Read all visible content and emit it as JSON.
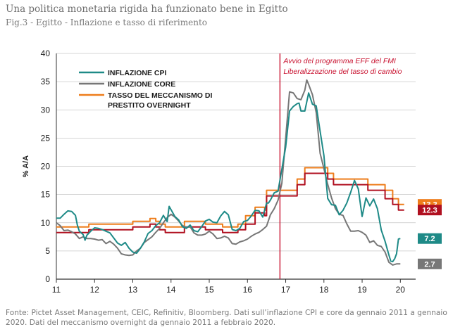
{
  "header": {
    "title": "Una politica monetaria rigida ha funzionato bene in Egitto",
    "subtitle": "Fig.3 - Egitto - Inflazione e tasso di riferimento"
  },
  "footer": {
    "source": "Fonte: Pictet Asset Management, CEIC, Refinitiv, Bloomberg. Dati sull’inflazione CPI e core da gennaio 2011 a gennaio 2020. Dati del meccanismo overnight da gennaio 2011 a febbraio 2020."
  },
  "chart_data": {
    "type": "line",
    "ylabel": "% A/A",
    "xlim": [
      11,
      20.4
    ],
    "ylim": [
      0,
      40
    ],
    "x_ticks": [
      "11",
      "12",
      "13",
      "14",
      "15",
      "16",
      "17",
      "18",
      "19",
      "20"
    ],
    "y_ticks": [
      "0",
      "5",
      "10",
      "15",
      "20",
      "25",
      "30",
      "35",
      "40"
    ],
    "grid": "horizontal",
    "legend_position": "top-left",
    "annotation": {
      "x": 16.85,
      "lines": [
        "Avvio del programma EFF del FMI",
        "Liberalizzazione del tasso di cambio"
      ],
      "color": "#c8102e"
    },
    "series": [
      {
        "name": "INFLAZIONE CPI",
        "color": "#1e8a87",
        "end_label": "7.2",
        "points": [
          [
            11.0,
            10.8
          ],
          [
            11.1,
            10.8
          ],
          [
            11.2,
            11.5
          ],
          [
            11.3,
            12.1
          ],
          [
            11.4,
            12.0
          ],
          [
            11.5,
            11.3
          ],
          [
            11.55,
            9.6
          ],
          [
            11.6,
            8.5
          ],
          [
            11.7,
            7.9
          ],
          [
            11.75,
            6.9
          ],
          [
            11.8,
            7.8
          ],
          [
            11.9,
            8.5
          ],
          [
            12.0,
            9.1
          ],
          [
            12.1,
            9.0
          ],
          [
            12.2,
            8.8
          ],
          [
            12.3,
            8.5
          ],
          [
            12.4,
            8.2
          ],
          [
            12.5,
            7.3
          ],
          [
            12.6,
            6.4
          ],
          [
            12.7,
            6.0
          ],
          [
            12.8,
            6.5
          ],
          [
            12.9,
            5.5
          ],
          [
            13.0,
            4.8
          ],
          [
            13.1,
            4.6
          ],
          [
            13.2,
            5.5
          ],
          [
            13.3,
            6.6
          ],
          [
            13.4,
            8.1
          ],
          [
            13.5,
            8.6
          ],
          [
            13.6,
            9.5
          ],
          [
            13.7,
            10.0
          ],
          [
            13.8,
            11.3
          ],
          [
            13.9,
            10.2
          ],
          [
            13.95,
            12.9
          ],
          [
            14.0,
            12.3
          ],
          [
            14.1,
            11.1
          ],
          [
            14.2,
            10.5
          ],
          [
            14.3,
            9.3
          ],
          [
            14.4,
            9.0
          ],
          [
            14.5,
            9.6
          ],
          [
            14.6,
            8.6
          ],
          [
            14.7,
            8.4
          ],
          [
            14.8,
            9.3
          ],
          [
            14.9,
            10.3
          ],
          [
            15.0,
            10.6
          ],
          [
            15.1,
            10.1
          ],
          [
            15.2,
            10.0
          ],
          [
            15.3,
            11.2
          ],
          [
            15.4,
            12.0
          ],
          [
            15.5,
            11.4
          ],
          [
            15.6,
            8.8
          ],
          [
            15.7,
            8.6
          ],
          [
            15.8,
            9.0
          ],
          [
            15.9,
            10.2
          ],
          [
            16.0,
            10.4
          ],
          [
            16.1,
            11.2
          ],
          [
            16.2,
            12.2
          ],
          [
            16.3,
            12.1
          ],
          [
            16.4,
            11.0
          ],
          [
            16.5,
            13.5
          ],
          [
            16.55,
            13.5
          ],
          [
            16.6,
            14.0
          ],
          [
            16.7,
            15.3
          ],
          [
            16.8,
            15.6
          ],
          [
            16.9,
            19.5
          ],
          [
            17.0,
            23.4
          ],
          [
            17.1,
            29.8
          ],
          [
            17.2,
            30.6
          ],
          [
            17.3,
            31.1
          ],
          [
            17.35,
            31.2
          ],
          [
            17.4,
            29.8
          ],
          [
            17.5,
            29.8
          ],
          [
            17.6,
            33.0
          ],
          [
            17.7,
            31.0
          ],
          [
            17.8,
            30.7
          ],
          [
            17.9,
            26.2
          ],
          [
            18.0,
            21.9
          ],
          [
            18.1,
            14.3
          ],
          [
            18.2,
            13.2
          ],
          [
            18.3,
            13.1
          ],
          [
            18.4,
            11.4
          ],
          [
            18.5,
            12.2
          ],
          [
            18.6,
            13.5
          ],
          [
            18.7,
            15.4
          ],
          [
            18.8,
            17.5
          ],
          [
            18.9,
            16.0
          ],
          [
            19.0,
            11.1
          ],
          [
            19.1,
            14.4
          ],
          [
            19.2,
            13.0
          ],
          [
            19.3,
            14.2
          ],
          [
            19.4,
            12.5
          ],
          [
            19.5,
            8.7
          ],
          [
            19.6,
            6.7
          ],
          [
            19.7,
            4.3
          ],
          [
            19.75,
            3.2
          ],
          [
            19.8,
            3.1
          ],
          [
            19.85,
            3.6
          ],
          [
            19.9,
            4.5
          ],
          [
            19.95,
            7.1
          ],
          [
            20.0,
            7.2
          ]
        ]
      },
      {
        "name": "INFLAZIONE CORE",
        "color": "#777777",
        "end_label": "2.7",
        "points": [
          [
            11.0,
            10.0
          ],
          [
            11.1,
            9.5
          ],
          [
            11.2,
            8.6
          ],
          [
            11.3,
            8.7
          ],
          [
            11.4,
            8.4
          ],
          [
            11.5,
            8.0
          ],
          [
            11.6,
            7.2
          ],
          [
            11.7,
            7.5
          ],
          [
            11.8,
            7.2
          ],
          [
            11.9,
            7.2
          ],
          [
            12.0,
            7.1
          ],
          [
            12.1,
            6.9
          ],
          [
            12.2,
            7.0
          ],
          [
            12.3,
            6.3
          ],
          [
            12.4,
            6.7
          ],
          [
            12.5,
            6.2
          ],
          [
            12.6,
            5.5
          ],
          [
            12.7,
            4.5
          ],
          [
            12.8,
            4.3
          ],
          [
            12.9,
            4.2
          ],
          [
            13.0,
            4.3
          ],
          [
            13.1,
            5.0
          ],
          [
            13.2,
            5.5
          ],
          [
            13.3,
            6.5
          ],
          [
            13.4,
            7.0
          ],
          [
            13.5,
            7.5
          ],
          [
            13.6,
            8.3
          ],
          [
            13.7,
            9.0
          ],
          [
            13.8,
            10.0
          ],
          [
            13.9,
            10.9
          ],
          [
            14.0,
            11.5
          ],
          [
            14.1,
            11.0
          ],
          [
            14.2,
            10.3
          ],
          [
            14.3,
            9.5
          ],
          [
            14.4,
            9.2
          ],
          [
            14.5,
            9.3
          ],
          [
            14.6,
            8.2
          ],
          [
            14.7,
            7.8
          ],
          [
            14.8,
            7.8
          ],
          [
            14.9,
            8.0
          ],
          [
            15.0,
            8.5
          ],
          [
            15.1,
            8.0
          ],
          [
            15.2,
            7.2
          ],
          [
            15.3,
            7.3
          ],
          [
            15.4,
            7.6
          ],
          [
            15.5,
            7.3
          ],
          [
            15.6,
            6.3
          ],
          [
            15.7,
            6.2
          ],
          [
            15.8,
            6.6
          ],
          [
            15.9,
            6.8
          ],
          [
            16.0,
            7.1
          ],
          [
            16.1,
            7.6
          ],
          [
            16.2,
            8.0
          ],
          [
            16.3,
            8.3
          ],
          [
            16.4,
            8.8
          ],
          [
            16.5,
            9.4
          ],
          [
            16.6,
            11.4
          ],
          [
            16.7,
            12.5
          ],
          [
            16.8,
            14.0
          ],
          [
            16.9,
            17.0
          ],
          [
            17.0,
            25.0
          ],
          [
            17.1,
            33.2
          ],
          [
            17.2,
            33.0
          ],
          [
            17.3,
            32.0
          ],
          [
            17.4,
            31.8
          ],
          [
            17.5,
            33.5
          ],
          [
            17.55,
            35.3
          ],
          [
            17.6,
            34.5
          ],
          [
            17.7,
            32.7
          ],
          [
            17.8,
            29.5
          ],
          [
            17.9,
            22.3
          ],
          [
            18.0,
            19.6
          ],
          [
            18.1,
            16.8
          ],
          [
            18.2,
            14.4
          ],
          [
            18.3,
            12.5
          ],
          [
            18.4,
            11.5
          ],
          [
            18.5,
            11.3
          ],
          [
            18.6,
            9.8
          ],
          [
            18.7,
            8.5
          ],
          [
            18.8,
            8.5
          ],
          [
            18.9,
            8.6
          ],
          [
            19.0,
            8.3
          ],
          [
            19.1,
            7.8
          ],
          [
            19.2,
            6.5
          ],
          [
            19.3,
            6.8
          ],
          [
            19.4,
            6.0
          ],
          [
            19.5,
            5.8
          ],
          [
            19.6,
            4.8
          ],
          [
            19.7,
            3.0
          ],
          [
            19.8,
            2.5
          ],
          [
            19.9,
            2.7
          ],
          [
            20.0,
            2.7
          ]
        ]
      },
      {
        "name": "TASSO DEL MECCANISMO DI PRESTITO OVERNIGHT",
        "name_lines": [
          "TASSO DEL MECCANISMO DI",
          "PRESTITO OVERNIGHT"
        ],
        "color": "#ee7d1b",
        "end_label": "13.3",
        "points": [
          [
            11.0,
            9.25
          ],
          [
            11.85,
            9.25
          ],
          [
            11.85,
            9.75
          ],
          [
            13.0,
            9.75
          ],
          [
            13.0,
            10.25
          ],
          [
            13.45,
            10.25
          ],
          [
            13.45,
            10.75
          ],
          [
            13.6,
            10.75
          ],
          [
            13.6,
            10.25
          ],
          [
            13.7,
            10.25
          ],
          [
            13.7,
            9.75
          ],
          [
            13.85,
            9.75
          ],
          [
            13.85,
            9.25
          ],
          [
            14.35,
            9.25
          ],
          [
            14.35,
            10.25
          ],
          [
            14.9,
            10.25
          ],
          [
            14.9,
            9.75
          ],
          [
            15.35,
            9.75
          ],
          [
            15.35,
            9.25
          ],
          [
            15.75,
            9.25
          ],
          [
            15.75,
            9.75
          ],
          [
            15.95,
            9.75
          ],
          [
            15.95,
            11.25
          ],
          [
            16.2,
            11.25
          ],
          [
            16.2,
            12.75
          ],
          [
            16.45,
            12.75
          ],
          [
            16.45,
            12.25
          ],
          [
            16.5,
            12.25
          ],
          [
            16.5,
            15.75
          ],
          [
            17.3,
            15.75
          ],
          [
            17.3,
            17.75
          ],
          [
            17.5,
            17.75
          ],
          [
            17.5,
            19.75
          ],
          [
            18.1,
            19.75
          ],
          [
            18.1,
            18.75
          ],
          [
            18.25,
            18.75
          ],
          [
            18.25,
            17.75
          ],
          [
            19.15,
            17.75
          ],
          [
            19.15,
            16.75
          ],
          [
            19.6,
            16.75
          ],
          [
            19.6,
            15.75
          ],
          [
            19.8,
            15.75
          ],
          [
            19.8,
            14.25
          ],
          [
            19.95,
            14.25
          ],
          [
            19.95,
            13.25
          ],
          [
            20.1,
            13.25
          ]
        ]
      },
      {
        "name": "",
        "color": "#b01020",
        "end_label": "12.3",
        "points": [
          [
            11.0,
            8.25
          ],
          [
            11.85,
            8.25
          ],
          [
            11.85,
            8.75
          ],
          [
            13.0,
            8.75
          ],
          [
            13.0,
            9.25
          ],
          [
            13.45,
            9.25
          ],
          [
            13.45,
            9.75
          ],
          [
            13.6,
            9.75
          ],
          [
            13.6,
            9.25
          ],
          [
            13.7,
            9.25
          ],
          [
            13.7,
            8.75
          ],
          [
            13.85,
            8.75
          ],
          [
            13.85,
            8.25
          ],
          [
            14.35,
            8.25
          ],
          [
            14.35,
            9.25
          ],
          [
            14.9,
            9.25
          ],
          [
            14.9,
            8.75
          ],
          [
            15.35,
            8.75
          ],
          [
            15.35,
            8.25
          ],
          [
            15.75,
            8.25
          ],
          [
            15.75,
            8.75
          ],
          [
            15.95,
            8.75
          ],
          [
            15.95,
            9.75
          ],
          [
            16.2,
            9.75
          ],
          [
            16.2,
            11.75
          ],
          [
            16.45,
            11.75
          ],
          [
            16.45,
            11.25
          ],
          [
            16.5,
            11.25
          ],
          [
            16.5,
            14.75
          ],
          [
            17.3,
            14.75
          ],
          [
            17.3,
            16.75
          ],
          [
            17.5,
            16.75
          ],
          [
            17.5,
            18.75
          ],
          [
            18.1,
            18.75
          ],
          [
            18.1,
            17.75
          ],
          [
            18.25,
            17.75
          ],
          [
            18.25,
            16.75
          ],
          [
            19.15,
            16.75
          ],
          [
            19.15,
            15.75
          ],
          [
            19.6,
            15.75
          ],
          [
            19.6,
            14.25
          ],
          [
            19.8,
            14.25
          ],
          [
            19.8,
            13.25
          ],
          [
            19.95,
            13.25
          ],
          [
            19.95,
            12.25
          ],
          [
            20.1,
            12.25
          ]
        ]
      }
    ]
  }
}
